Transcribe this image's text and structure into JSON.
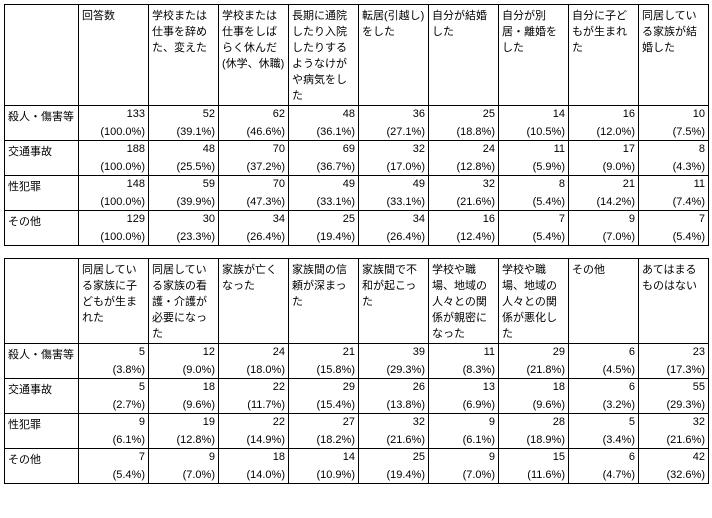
{
  "tables": [
    {
      "headers": [
        "回答数",
        "学校または仕事を辞めた、変えた",
        "学校または仕事をしばらく休んだ(休学、休職)",
        "長期に通院したり入院したりするようなけがや病気をした",
        "転居(引越し)をした",
        "自分が結婚した",
        "自分が別居・離婚をした",
        "自分に子どもが生まれた",
        "同居している家族が結婚した"
      ],
      "rows": [
        {
          "label": "殺人・傷害等",
          "vals": [
            "133",
            "52",
            "62",
            "48",
            "36",
            "25",
            "14",
            "16",
            "10"
          ],
          "pcts": [
            "(100.0%)",
            "(39.1%)",
            "(46.6%)",
            "(36.1%)",
            "(27.1%)",
            "(18.8%)",
            "(10.5%)",
            "(12.0%)",
            "(7.5%)"
          ]
        },
        {
          "label": "交通事故",
          "vals": [
            "188",
            "48",
            "70",
            "69",
            "32",
            "24",
            "11",
            "17",
            "8"
          ],
          "pcts": [
            "(100.0%)",
            "(25.5%)",
            "(37.2%)",
            "(36.7%)",
            "(17.0%)",
            "(12.8%)",
            "(5.9%)",
            "(9.0%)",
            "(4.3%)"
          ]
        },
        {
          "label": "性犯罪",
          "vals": [
            "148",
            "59",
            "70",
            "49",
            "49",
            "32",
            "8",
            "21",
            "11"
          ],
          "pcts": [
            "(100.0%)",
            "(39.9%)",
            "(47.3%)",
            "(33.1%)",
            "(33.1%)",
            "(21.6%)",
            "(5.4%)",
            "(14.2%)",
            "(7.4%)"
          ]
        },
        {
          "label": "その他",
          "vals": [
            "129",
            "30",
            "34",
            "25",
            "34",
            "16",
            "7",
            "9",
            "7"
          ],
          "pcts": [
            "(100.0%)",
            "(23.3%)",
            "(26.4%)",
            "(19.4%)",
            "(26.4%)",
            "(12.4%)",
            "(5.4%)",
            "(7.0%)",
            "(5.4%)"
          ]
        }
      ]
    },
    {
      "headers": [
        "同居している家族に子どもが生まれた",
        "同居している家族の看護・介護が必要になった",
        "家族が亡くなった",
        "家族間の信頼が深まった",
        "家族間で不和が起こった",
        "学校や職場、地域の人々との関係が親密になった",
        "学校や職場、地域の人々との関係が悪化した",
        "その他",
        "あてはまるものはない"
      ],
      "rows": [
        {
          "label": "殺人・傷害等",
          "vals": [
            "5",
            "12",
            "24",
            "21",
            "39",
            "11",
            "29",
            "6",
            "23"
          ],
          "pcts": [
            "(3.8%)",
            "(9.0%)",
            "(18.0%)",
            "(15.8%)",
            "(29.3%)",
            "(8.3%)",
            "(21.8%)",
            "(4.5%)",
            "(17.3%)"
          ]
        },
        {
          "label": "交通事故",
          "vals": [
            "5",
            "18",
            "22",
            "29",
            "26",
            "13",
            "18",
            "6",
            "55"
          ],
          "pcts": [
            "(2.7%)",
            "(9.6%)",
            "(11.7%)",
            "(15.4%)",
            "(13.8%)",
            "(6.9%)",
            "(9.6%)",
            "(3.2%)",
            "(29.3%)"
          ]
        },
        {
          "label": "性犯罪",
          "vals": [
            "9",
            "19",
            "22",
            "27",
            "32",
            "9",
            "28",
            "5",
            "32"
          ],
          "pcts": [
            "(6.1%)",
            "(12.8%)",
            "(14.9%)",
            "(18.2%)",
            "(21.6%)",
            "(6.1%)",
            "(18.9%)",
            "(3.4%)",
            "(21.6%)"
          ]
        },
        {
          "label": "その他",
          "vals": [
            "7",
            "9",
            "18",
            "14",
            "25",
            "9",
            "15",
            "6",
            "42"
          ],
          "pcts": [
            "(5.4%)",
            "(7.0%)",
            "(14.0%)",
            "(10.9%)",
            "(19.4%)",
            "(7.0%)",
            "(11.6%)",
            "(4.7%)",
            "(32.6%)"
          ]
        }
      ]
    }
  ]
}
